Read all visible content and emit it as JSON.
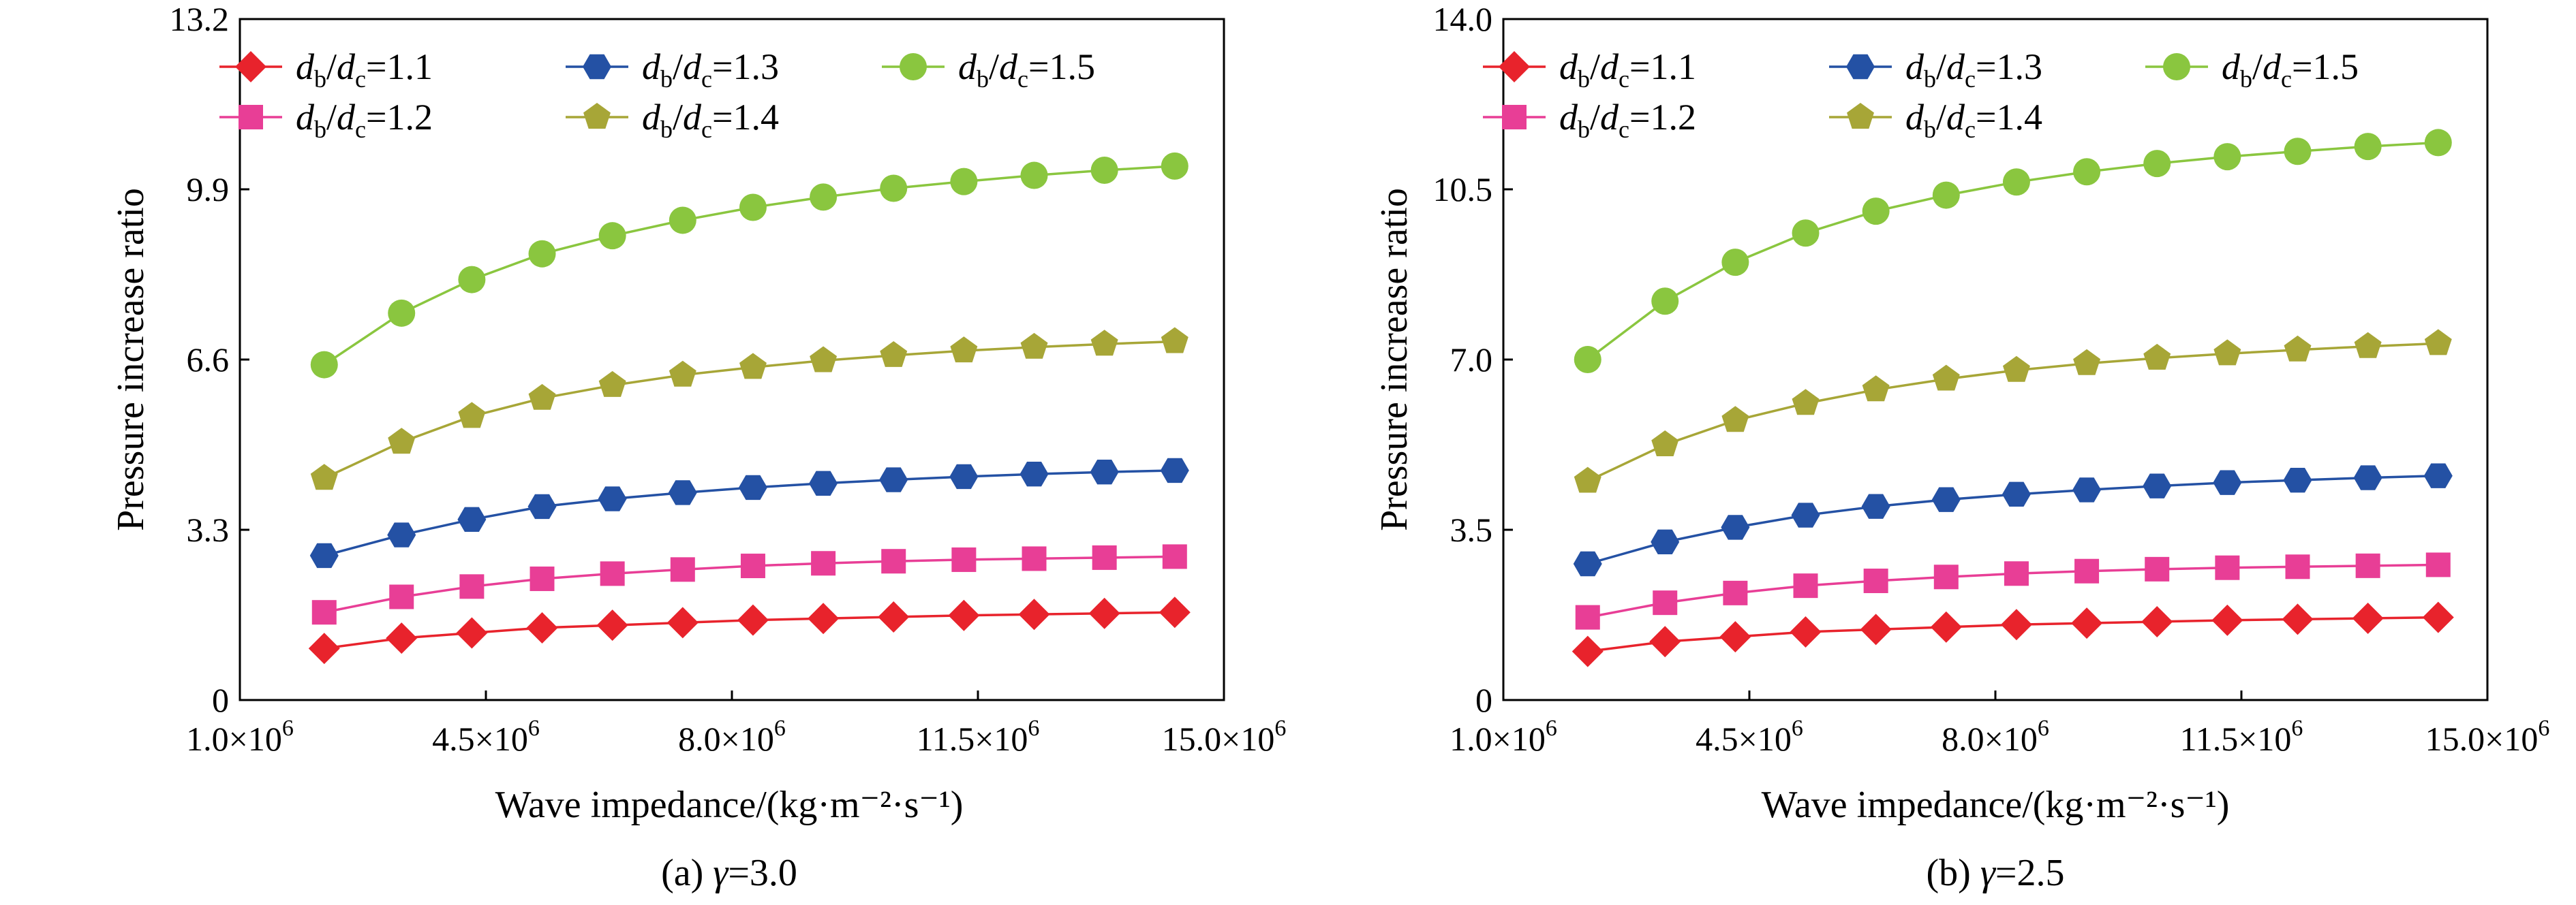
{
  "colors": {
    "r1.1": "#e8232c",
    "r1.2": "#e83e96",
    "r1.3": "#2451a4",
    "r1.4": "#a7a637",
    "r1.5": "#8ac63f"
  },
  "legend_label": {
    "prefix_d": "d",
    "sub_b": "b",
    "slash": "/",
    "sub_c": "c"
  },
  "chart_data": [
    {
      "type": "line",
      "caption": {
        "prefix": "(a) ",
        "symbol": "γ",
        "value": "=3.0"
      },
      "xlabel": "Wave impedance/(kg·m⁻²·s⁻¹)",
      "ylabel": "Pressure increase ratio",
      "xlim": [
        1000000.0,
        15000000.0
      ],
      "ylim": [
        0,
        13.2
      ],
      "xticks": [
        {
          "value": 1000000.0,
          "label": "1.0×10",
          "exp": "6"
        },
        {
          "value": 4500000.0,
          "label": "4.5×10",
          "exp": "6"
        },
        {
          "value": 8000000.0,
          "label": "8.0×10",
          "exp": "6"
        },
        {
          "value": 11500000.0,
          "label": "11.5×10",
          "exp": "6"
        },
        {
          "value": 15000000.0,
          "label": "15.0×10",
          "exp": "6"
        }
      ],
      "yticks": [
        {
          "value": 0,
          "label": "0"
        },
        {
          "value": 3.3,
          "label": "3.3"
        },
        {
          "value": 6.6,
          "label": "6.6"
        },
        {
          "value": 9.9,
          "label": "9.9"
        },
        {
          "value": 13.2,
          "label": "13.2"
        }
      ],
      "x": [
        2200000.0,
        3300000.0,
        4300000.0,
        5300000.0,
        6300000.0,
        7300000.0,
        8300000.0,
        9300000.0,
        10300000.0,
        11300000.0,
        12300000.0,
        13300000.0,
        14300000.0
      ],
      "legend_position": "top",
      "series": [
        {
          "key": "r1.1",
          "ratio": "=1.1",
          "marker": "diamond",
          "values": [
            1.0,
            1.2,
            1.3,
            1.4,
            1.45,
            1.5,
            1.55,
            1.58,
            1.61,
            1.64,
            1.66,
            1.68,
            1.7
          ]
        },
        {
          "key": "r1.2",
          "ratio": "=1.2",
          "marker": "square",
          "values": [
            1.7,
            2.0,
            2.2,
            2.35,
            2.45,
            2.53,
            2.6,
            2.65,
            2.69,
            2.72,
            2.74,
            2.76,
            2.78
          ]
        },
        {
          "key": "r1.3",
          "ratio": "=1.3",
          "marker": "hexagon",
          "values": [
            2.8,
            3.2,
            3.5,
            3.75,
            3.9,
            4.02,
            4.12,
            4.2,
            4.27,
            4.33,
            4.38,
            4.42,
            4.45
          ]
        },
        {
          "key": "r1.4",
          "ratio": "=1.4",
          "marker": "pentagon",
          "values": [
            4.3,
            5.0,
            5.5,
            5.85,
            6.1,
            6.3,
            6.45,
            6.58,
            6.68,
            6.77,
            6.84,
            6.9,
            6.95
          ]
        },
        {
          "key": "r1.5",
          "ratio": "=1.5",
          "marker": "circle",
          "values": [
            6.5,
            7.5,
            8.15,
            8.65,
            9.0,
            9.3,
            9.55,
            9.75,
            9.92,
            10.05,
            10.17,
            10.27,
            10.35
          ]
        }
      ]
    },
    {
      "type": "line",
      "caption": {
        "prefix": "(b) ",
        "symbol": "γ",
        "value": "=2.5"
      },
      "xlabel": "Wave impedance/(kg·m⁻²·s⁻¹)",
      "ylabel": "Pressure increase ratio",
      "xlim": [
        1000000.0,
        15000000.0
      ],
      "ylim": [
        0,
        14.0
      ],
      "xticks": [
        {
          "value": 1000000.0,
          "label": "1.0×10",
          "exp": "6"
        },
        {
          "value": 4500000.0,
          "label": "4.5×10",
          "exp": "6"
        },
        {
          "value": 8000000.0,
          "label": "8.0×10",
          "exp": "6"
        },
        {
          "value": 11500000.0,
          "label": "11.5×10",
          "exp": "6"
        },
        {
          "value": 15000000.0,
          "label": "15.0×10",
          "exp": "6"
        }
      ],
      "yticks": [
        {
          "value": 0,
          "label": "0"
        },
        {
          "value": 3.5,
          "label": "3.5"
        },
        {
          "value": 7.0,
          "label": "7.0"
        },
        {
          "value": 10.5,
          "label": "10.5"
        },
        {
          "value": 14.0,
          "label": "14.0"
        }
      ],
      "x": [
        2200000.0,
        3300000.0,
        4300000.0,
        5300000.0,
        6300000.0,
        7300000.0,
        8300000.0,
        9300000.0,
        10300000.0,
        11300000.0,
        12300000.0,
        13300000.0,
        14300000.0
      ],
      "legend_position": "top",
      "series": [
        {
          "key": "r1.1",
          "ratio": "=1.1",
          "marker": "diamond",
          "values": [
            1.0,
            1.2,
            1.3,
            1.4,
            1.45,
            1.5,
            1.55,
            1.58,
            1.61,
            1.64,
            1.66,
            1.68,
            1.7
          ]
        },
        {
          "key": "r1.2",
          "ratio": "=1.2",
          "marker": "square",
          "values": [
            1.7,
            2.0,
            2.2,
            2.35,
            2.45,
            2.53,
            2.6,
            2.65,
            2.69,
            2.72,
            2.74,
            2.76,
            2.78
          ]
        },
        {
          "key": "r1.3",
          "ratio": "=1.3",
          "marker": "hexagon",
          "values": [
            2.8,
            3.25,
            3.55,
            3.8,
            3.98,
            4.12,
            4.23,
            4.32,
            4.4,
            4.47,
            4.52,
            4.57,
            4.61
          ]
        },
        {
          "key": "r1.4",
          "ratio": "=1.4",
          "marker": "pentagon",
          "values": [
            4.5,
            5.25,
            5.75,
            6.1,
            6.38,
            6.6,
            6.78,
            6.92,
            7.03,
            7.12,
            7.2,
            7.27,
            7.33
          ]
        },
        {
          "key": "r1.5",
          "ratio": "=1.5",
          "marker": "circle",
          "values": [
            7.0,
            8.2,
            9.0,
            9.6,
            10.05,
            10.38,
            10.65,
            10.86,
            11.03,
            11.17,
            11.28,
            11.38,
            11.46
          ]
        }
      ]
    }
  ]
}
